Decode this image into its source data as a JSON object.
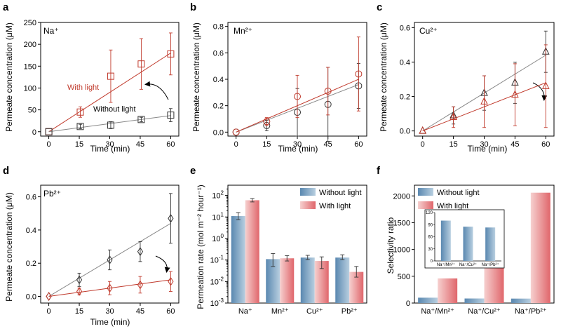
{
  "colors": {
    "with_light": "#c0392b",
    "without_light": "#333333",
    "fit_without": "#888888",
    "bar_without_dark": "#5a88b0",
    "bar_without_light": "#b8cfe0",
    "bar_with_dark": "#e0666b",
    "bar_with_light": "#f6d0cf"
  },
  "chart_data": [
    {
      "panel": "a",
      "type": "scatter",
      "ion": "Na⁺",
      "xlabel": "Time (min)",
      "ylabel": "Permeate concentration (μM)",
      "xlim": [
        -4,
        64
      ],
      "ylim": [
        -10,
        250
      ],
      "xticks": [
        "0",
        "15",
        "30",
        "45",
        "60"
      ],
      "xtickvals": [
        0,
        15,
        30,
        45,
        60
      ],
      "yticks": [
        "0",
        "50",
        "100",
        "150",
        "200",
        "250"
      ],
      "ytickvals": [
        0,
        50,
        100,
        150,
        200,
        250
      ],
      "annotations": [
        "With light",
        "Without light"
      ],
      "series": [
        {
          "name": "With light",
          "marker": "square",
          "x": [
            0,
            15.5,
            30.5,
            45.5,
            60
          ],
          "y": [
            0,
            45,
            127,
            155,
            178
          ],
          "err": [
            0,
            12,
            60,
            58,
            48
          ],
          "fit": [
            0,
            180
          ]
        },
        {
          "name": "Without light",
          "marker": "square",
          "x": [
            0,
            15.5,
            30.5,
            45.5,
            60
          ],
          "y": [
            0,
            12,
            15,
            28,
            38
          ],
          "err": [
            0,
            5,
            8,
            5,
            15
          ],
          "fit": [
            0,
            37
          ]
        }
      ]
    },
    {
      "panel": "b",
      "type": "scatter",
      "ion": "Mn²⁺",
      "xlabel": "Time (min)",
      "ylabel": "Permeate concentration (μM)",
      "xlim": [
        -4,
        64
      ],
      "ylim": [
        -0.03,
        0.83
      ],
      "xticks": [
        "0",
        "15",
        "30",
        "45",
        "60"
      ],
      "xtickvals": [
        0,
        15,
        30,
        45,
        60
      ],
      "yticks": [
        "0.0",
        "0.2",
        "0.4",
        "0.6",
        "0.8"
      ],
      "ytickvals": [
        0,
        0.2,
        0.4,
        0.6,
        0.8
      ],
      "series": [
        {
          "name": "Without light",
          "marker": "circle",
          "x": [
            0,
            15,
            30,
            45,
            60
          ],
          "y": [
            0,
            0.05,
            0.15,
            0.21,
            0.35
          ],
          "err": [
            0,
            0.04,
            0.18,
            0.28,
            0.17
          ],
          "fit": [
            0,
            0.36
          ]
        },
        {
          "name": "With light",
          "marker": "circle",
          "x": [
            0,
            15,
            30,
            45,
            60
          ],
          "y": [
            0,
            0.08,
            0.27,
            0.31,
            0.44
          ],
          "err": [
            0,
            0.03,
            0.16,
            0.18,
            0.28
          ],
          "fit": [
            0,
            0.4
          ]
        }
      ]
    },
    {
      "panel": "c",
      "type": "scatter",
      "ion": "Cu²⁺",
      "xlabel": "Time (min)",
      "ylabel": "Permeate concentration (μM)",
      "xlim": [
        -4,
        64
      ],
      "ylim": [
        -0.03,
        0.63
      ],
      "xticks": [
        "0",
        "15",
        "30",
        "45",
        "60"
      ],
      "xtickvals": [
        0,
        15,
        30,
        45,
        60
      ],
      "yticks": [
        "0.0",
        "0.2",
        "0.4",
        "0.6"
      ],
      "ytickvals": [
        0,
        0.2,
        0.4,
        0.6
      ],
      "series": [
        {
          "name": "Without light",
          "marker": "triangle",
          "x": [
            0,
            15,
            30,
            45,
            60
          ],
          "y": [
            0,
            0.09,
            0.22,
            0.28,
            0.46
          ],
          "err": [
            0,
            0.05,
            0.1,
            0.12,
            0.12
          ],
          "fit": [
            0,
            0.44
          ]
        },
        {
          "name": "With light",
          "marker": "triangle",
          "x": [
            0,
            15,
            30,
            45,
            60
          ],
          "y": [
            0,
            0.08,
            0.17,
            0.21,
            0.26
          ],
          "err": [
            0,
            0.06,
            0.15,
            0.18,
            0.24
          ],
          "fit": [
            0,
            0.28
          ]
        }
      ]
    },
    {
      "panel": "d",
      "type": "scatter",
      "ion": "Pb²⁺",
      "xlabel": "Time (min)",
      "ylabel": "Permeate concentration (μM)",
      "xlim": [
        -4,
        64
      ],
      "ylim": [
        -0.04,
        0.67
      ],
      "xticks": [
        "0",
        "15",
        "30",
        "45",
        "60"
      ],
      "xtickvals": [
        0,
        15,
        30,
        45,
        60
      ],
      "yticks": [
        "0.0",
        "0.2",
        "0.4",
        "0.6"
      ],
      "ytickvals": [
        0,
        0.2,
        0.4,
        0.6
      ],
      "series": [
        {
          "name": "Without light",
          "marker": "diamond",
          "x": [
            0,
            15,
            30,
            45,
            60
          ],
          "y": [
            0,
            0.1,
            0.22,
            0.27,
            0.47
          ],
          "err": [
            0,
            0.04,
            0.06,
            0.06,
            0.15
          ],
          "fit": [
            0,
            0.44
          ]
        },
        {
          "name": "With light",
          "marker": "diamond",
          "x": [
            0,
            15,
            30,
            45,
            60
          ],
          "y": [
            0,
            0.03,
            0.05,
            0.07,
            0.09
          ],
          "err": [
            0,
            0.02,
            0.04,
            0.05,
            0.06
          ],
          "fit": [
            0,
            0.1
          ]
        }
      ]
    },
    {
      "panel": "e",
      "type": "bar",
      "ylabel": "Permeation rate (mol m⁻² hour⁻¹)",
      "yscale": "log",
      "ylim": [
        0.001,
        300
      ],
      "ytick_exponents": [
        -3,
        -2,
        -1,
        0,
        1,
        2
      ],
      "categories": [
        "Na⁺",
        "Mn²⁺",
        "Cu²⁺",
        "Pb²⁺"
      ],
      "legend_position": "top-right",
      "series": [
        {
          "name": "Without light",
          "values": [
            11,
            0.11,
            0.13,
            0.13
          ],
          "err_low": [
            7.5,
            0.05,
            0.105,
            0.105
          ],
          "err_high": [
            16,
            0.2,
            0.165,
            0.175
          ]
        },
        {
          "name": "With light",
          "values": [
            60,
            0.12,
            0.09,
            0.028
          ],
          "err_low": [
            50,
            0.09,
            0.04,
            0.016
          ],
          "err_high": [
            72,
            0.16,
            0.14,
            0.05
          ]
        }
      ]
    },
    {
      "panel": "f",
      "type": "bar",
      "ylabel": "Selectivity ratio",
      "ylim": [
        0,
        2200
      ],
      "yticks": [
        "0",
        "500",
        "1000",
        "1500",
        "2000"
      ],
      "ytickvals": [
        0,
        500,
        1000,
        1500,
        2000
      ],
      "categories": [
        "Na⁺/Mn²⁺",
        "Na⁺/Cu²⁺",
        "Na⁺/Pb²⁺"
      ],
      "legend_position": "top-left",
      "series": [
        {
          "name": "Without light",
          "values": [
            100,
            85,
            83
          ]
        },
        {
          "name": "With light",
          "values": [
            460,
            700,
            2060
          ]
        }
      ],
      "inset": {
        "ylim": [
          0,
          120
        ],
        "yticks": [
          "0",
          "30",
          "60",
          "90",
          "120"
        ],
        "ytickvals": [
          0,
          30,
          60,
          90,
          120
        ],
        "categories": [
          "Na⁺/Mn²⁺",
          "Na⁺/Cu²⁺",
          "Na⁺/Pb²⁺"
        ],
        "values": [
          100,
          85,
          83
        ]
      }
    }
  ]
}
